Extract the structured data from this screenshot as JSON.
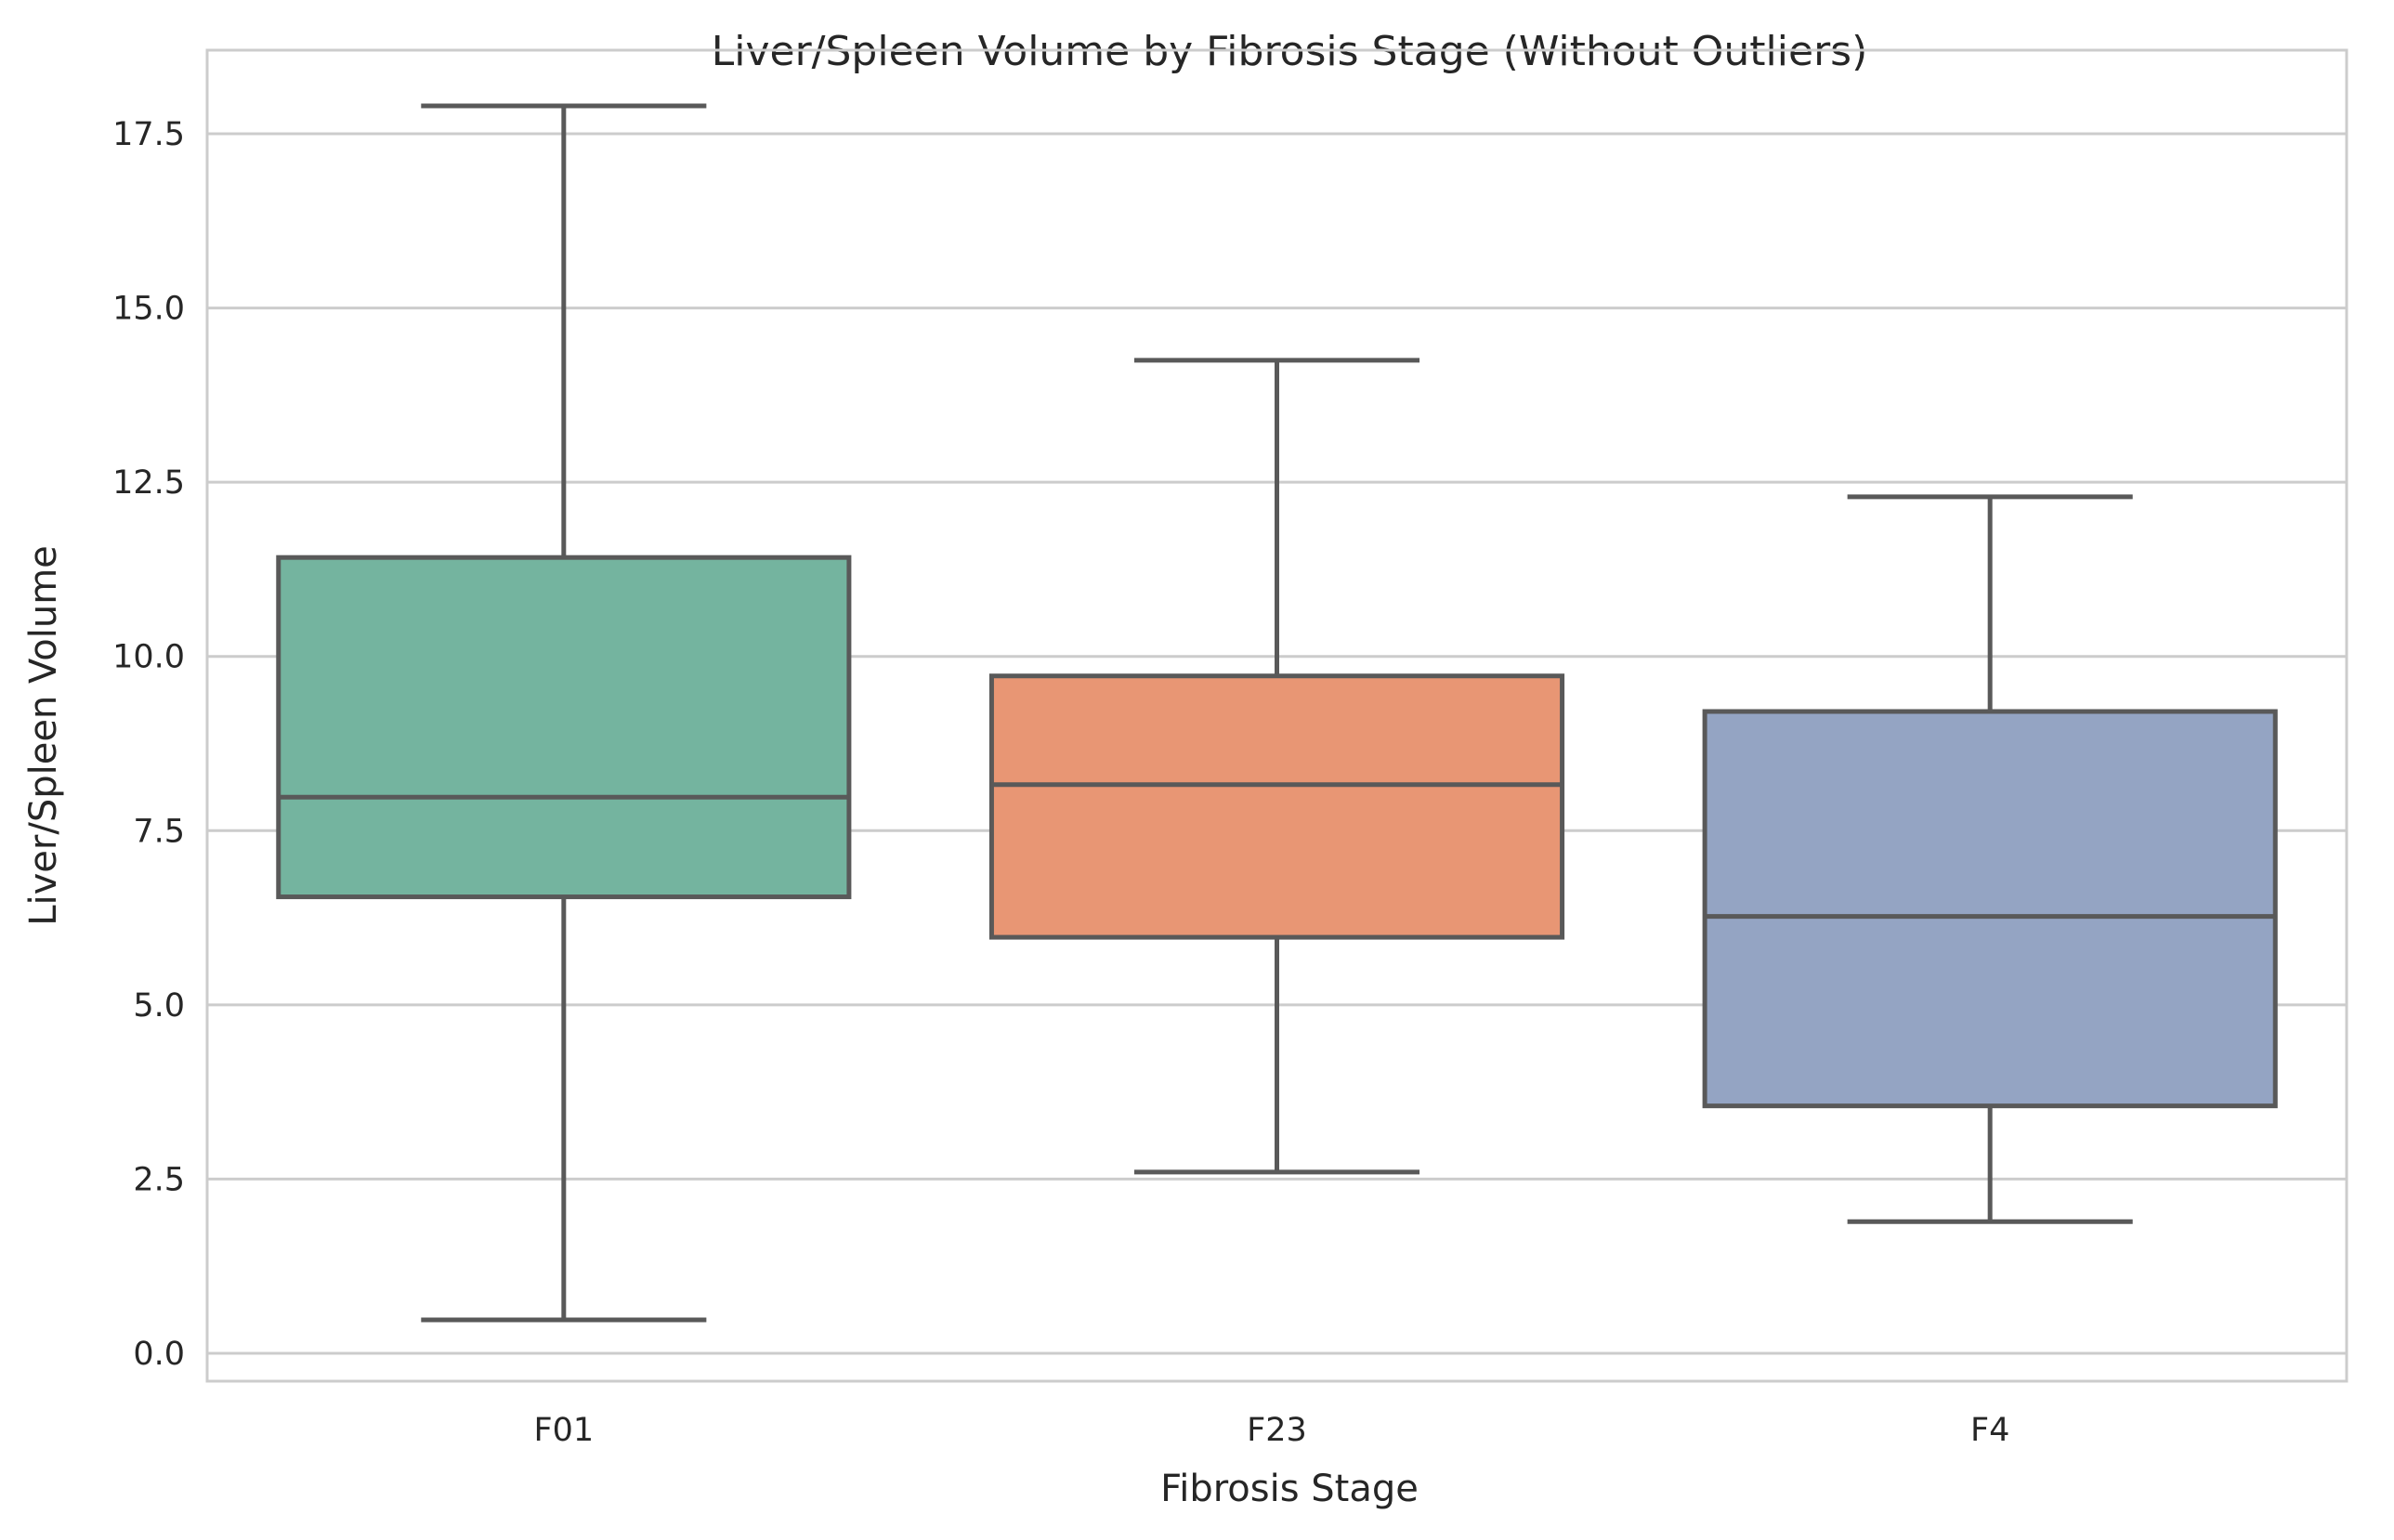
{
  "chart_data": {
    "type": "box",
    "title": "Liver/Spleen Volume by Fibrosis Stage (Without Outliers)",
    "xlabel": "Fibrosis Stage",
    "ylabel": "Liver/Spleen Volume",
    "ylim": [
      -0.4,
      18.7
    ],
    "yticks": [
      0.0,
      2.5,
      5.0,
      7.5,
      10.0,
      12.5,
      15.0,
      17.5
    ],
    "ytick_labels": [
      "0.0",
      "2.5",
      "5.0",
      "7.5",
      "10.0",
      "12.5",
      "15.0",
      "17.5"
    ],
    "categories": [
      "F01",
      "F23",
      "F4"
    ],
    "boxes": [
      {
        "category": "F01",
        "whisker_low": 0.48,
        "q1": 6.55,
        "median": 7.98,
        "q3": 11.42,
        "whisker_high": 17.9,
        "color": "#74b49f"
      },
      {
        "category": "F23",
        "whisker_low": 2.6,
        "q1": 5.97,
        "median": 8.16,
        "q3": 9.72,
        "whisker_high": 14.25,
        "color": "#e89674"
      },
      {
        "category": "F4",
        "whisker_low": 1.89,
        "q1": 3.55,
        "median": 6.27,
        "q3": 9.21,
        "whisker_high": 12.29,
        "color": "#94a4c3"
      }
    ],
    "grid": true,
    "grid_axis": "y",
    "line_color": "#595959",
    "grid_color": "#cccccc",
    "frame_color": "#cccccc"
  }
}
